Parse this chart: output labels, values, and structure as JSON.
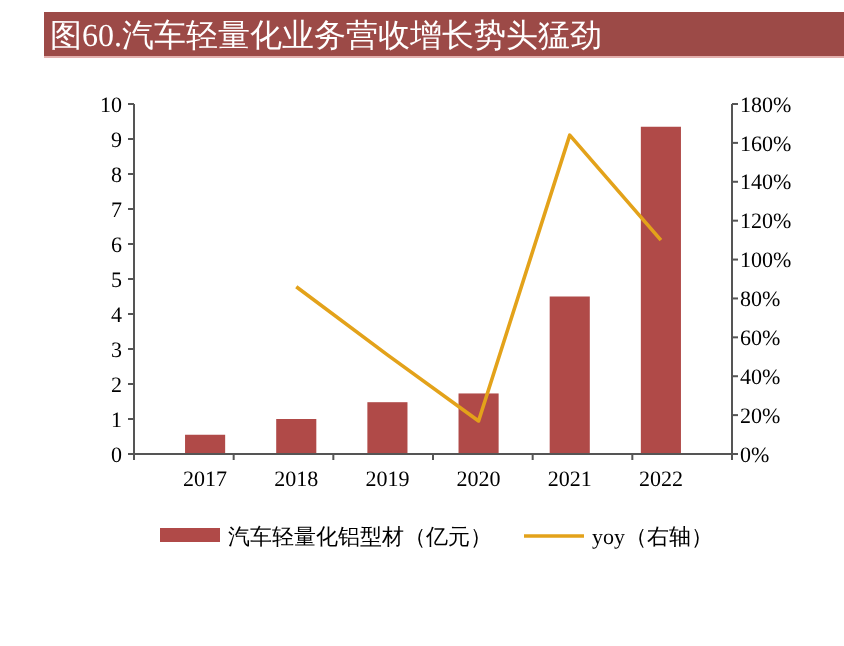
{
  "chart_data": {
    "type": "bar",
    "title": "图60.汽车轻量化业务营收增长势头猛劲",
    "categories": [
      "2017",
      "2018",
      "2019",
      "2020",
      "2021",
      "2022"
    ],
    "series": [
      {
        "name": "汽车轻量化铝型材（亿元）",
        "color": "#b04a48",
        "values": [
          0.55,
          1.0,
          1.48,
          1.73,
          4.5,
          9.35
        ]
      },
      {
        "name": "yoy（右轴）",
        "type": "line",
        "axis": "y2",
        "color": "#e3a21a",
        "values": [
          null,
          86,
          51,
          17,
          164,
          110
        ]
      }
    ],
    "ylim": [
      0,
      10
    ],
    "yticks": [
      0,
      1,
      2,
      3,
      4,
      5,
      6,
      7,
      8,
      9,
      10
    ],
    "y2lim": [
      0,
      180
    ],
    "y2ticks": [
      {
        "value": 0,
        "label": "0%"
      },
      {
        "value": 20,
        "label": "20%"
      },
      {
        "value": 40,
        "label": "40%"
      },
      {
        "value": 60,
        "label": "60%"
      },
      {
        "value": 80,
        "label": "80%"
      },
      {
        "value": 100,
        "label": "100%"
      },
      {
        "value": 120,
        "label": "120%"
      },
      {
        "value": 140,
        "label": "140%"
      },
      {
        "value": 160,
        "label": "160%"
      },
      {
        "value": 180,
        "label": "180%"
      }
    ],
    "legend": "bottom",
    "grid": false
  }
}
